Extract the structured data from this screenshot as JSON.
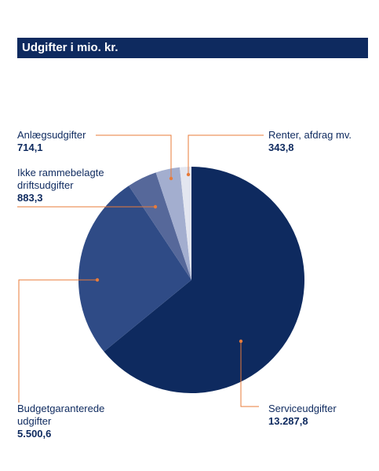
{
  "title": "Udgifter i mio. kr.",
  "chart_data": {
    "type": "pie",
    "title": "Udgifter i mio. kr.",
    "start_angle_deg": 0,
    "direction": "clockwise",
    "slices": [
      {
        "label": "Serviceudgifter",
        "value_text": "13.287,8",
        "value": 13287.8,
        "color": "#0e2a5f"
      },
      {
        "label": "Budgetgaranterede udgifter",
        "value_text": "5.500,6",
        "value": 5500.6,
        "color": "#2f4b86"
      },
      {
        "label": "Ikke rammebelagte driftsudgifter",
        "value_text": "883,3",
        "value": 883.3,
        "color": "#56689a"
      },
      {
        "label": "Anlægsudgifter",
        "value_text": "714,1",
        "value": 714.1,
        "color": "#a3aecf"
      },
      {
        "label": "Renter, afdrag mv.",
        "value_text": "343,8",
        "value": 343.8,
        "color": "#e3e6f0"
      }
    ],
    "leader_color": "#e87b3a"
  },
  "labels": {
    "anlaeg": {
      "name": "Anlægsudgifter",
      "value": "714,1"
    },
    "ikke": {
      "name1": "Ikke rammebelagte",
      "name2": "driftsudgifter",
      "value": "883,3"
    },
    "renter": {
      "name": "Renter, afdrag mv.",
      "value": "343,8"
    },
    "budget": {
      "name1": "Budgetgaranterede",
      "name2": "udgifter",
      "value": "5.500,6"
    },
    "service": {
      "name": "Serviceudgifter",
      "value": "13.287,8"
    }
  }
}
